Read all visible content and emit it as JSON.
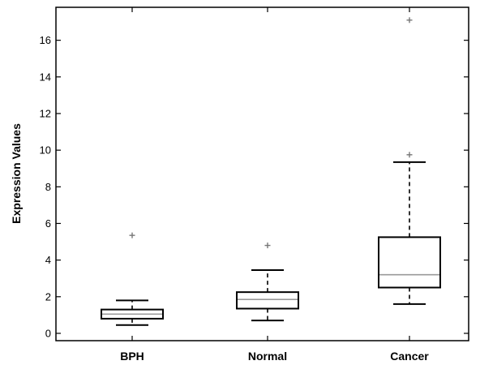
{
  "chart_data": {
    "type": "boxplot",
    "title": "",
    "xlabel": "",
    "ylabel": "Expression Values",
    "ylim": [
      -0.4,
      17.8
    ],
    "yticks": [
      0,
      2,
      4,
      6,
      8,
      10,
      12,
      14,
      16
    ],
    "grid": false,
    "categories": [
      "BPH",
      "Normal",
      "Cancer"
    ],
    "boxes": [
      {
        "category": "BPH",
        "whisker_low": 0.45,
        "q1": 0.8,
        "median": 1.05,
        "q3": 1.3,
        "whisker_high": 1.8,
        "outliers": [
          5.35
        ]
      },
      {
        "category": "Normal",
        "whisker_low": 0.7,
        "q1": 1.35,
        "median": 1.85,
        "q3": 2.25,
        "whisker_high": 3.45,
        "outliers": [
          4.8
        ]
      },
      {
        "category": "Cancer",
        "whisker_low": 1.6,
        "q1": 2.5,
        "median": 3.2,
        "q3": 5.25,
        "whisker_high": 9.35,
        "outliers": [
          9.75,
          17.1
        ]
      }
    ],
    "colors": {
      "box": "#000000",
      "median": "#9a9a9a",
      "whisker": "#000000",
      "outlier": "#777777"
    }
  }
}
